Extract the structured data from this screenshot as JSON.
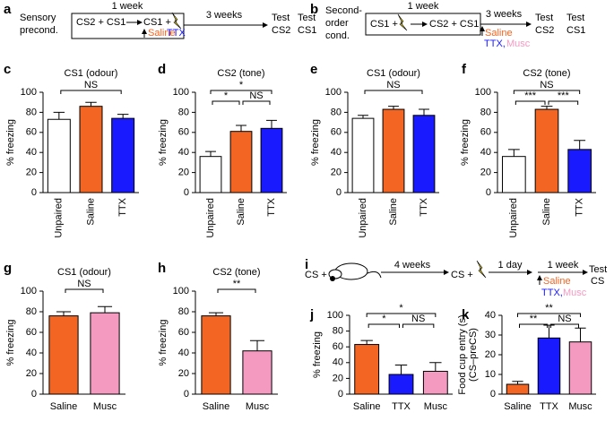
{
  "diagram_a": {
    "label": "a",
    "group": [
      "Sensory",
      "precond."
    ],
    "week": "1 week",
    "step1": "CS2 + CS1",
    "step2": "CS1 +",
    "drugs": [
      "Saline",
      "TTX"
    ],
    "gap": "3 weeks",
    "tests": [
      [
        "Test",
        "CS2"
      ],
      [
        "Test",
        "CS1"
      ]
    ]
  },
  "diagram_b": {
    "label": "b",
    "group": [
      "Second-",
      "order",
      "cond."
    ],
    "week": "1 week",
    "step1": "CS1 +",
    "step2": "CS2 + CS1",
    "gap": "3 weeks",
    "drugs": [
      "Saline",
      "TTX,",
      "Musc"
    ],
    "tests": [
      [
        "Test",
        "CS2"
      ],
      [
        "Test",
        "CS1"
      ]
    ]
  },
  "diagram_i": {
    "label": "i",
    "step1": "CS +",
    "gap1": "4 weeks",
    "step2": "CS +",
    "gap2": "1 day",
    "week": "1 week",
    "drugs": [
      "Saline",
      "TTX,",
      "Musc"
    ],
    "test": [
      "Test",
      "CS"
    ]
  },
  "chart_data": [
    {
      "type": "bar",
      "label": "c",
      "title": "CS1 (odour)",
      "ylabel": "% freezing",
      "categories": [
        "Unpaired",
        "Saline",
        "TTX"
      ],
      "values": [
        73,
        86,
        74
      ],
      "errors": [
        7,
        4,
        4
      ],
      "colors": [
        "#ffffff",
        "#f26522",
        "#1a1aff"
      ],
      "ylim": [
        0,
        100
      ],
      "yticks": [
        0,
        20,
        40,
        60,
        80,
        100
      ],
      "annotations": [
        {
          "text": "NS",
          "between": [
            "Unpaired",
            "TTX"
          ]
        }
      ]
    },
    {
      "type": "bar",
      "label": "d",
      "title": "CS2 (tone)",
      "ylabel": "% freezing",
      "categories": [
        "Unpaired",
        "Saline",
        "TTX"
      ],
      "values": [
        36,
        61,
        64
      ],
      "errors": [
        5,
        6,
        8
      ],
      "colors": [
        "#ffffff",
        "#f26522",
        "#1a1aff"
      ],
      "ylim": [
        0,
        100
      ],
      "yticks": [
        0,
        20,
        40,
        60,
        80,
        100
      ],
      "annotations": [
        {
          "text": "*",
          "between": [
            "Unpaired",
            "Saline"
          ]
        },
        {
          "text": "*",
          "between": [
            "Unpaired",
            "TTX"
          ]
        },
        {
          "text": "NS",
          "between": [
            "Saline",
            "TTX"
          ]
        }
      ]
    },
    {
      "type": "bar",
      "label": "e",
      "title": "CS1 (odour)",
      "ylabel": "% freezing",
      "categories": [
        "Unpaired",
        "Saline",
        "TTX"
      ],
      "values": [
        74,
        83,
        77
      ],
      "errors": [
        3,
        3,
        6
      ],
      "colors": [
        "#ffffff",
        "#f26522",
        "#1a1aff"
      ],
      "ylim": [
        0,
        100
      ],
      "yticks": [
        0,
        20,
        40,
        60,
        80,
        100
      ],
      "annotations": [
        {
          "text": "NS",
          "between": [
            "Unpaired",
            "TTX"
          ]
        }
      ]
    },
    {
      "type": "bar",
      "label": "f",
      "title": "CS2 (tone)",
      "ylabel": "% freezing",
      "categories": [
        "Unpaired",
        "Saline",
        "TTX"
      ],
      "values": [
        36,
        83,
        43
      ],
      "errors": [
        7,
        3,
        9
      ],
      "colors": [
        "#ffffff",
        "#f26522",
        "#1a1aff"
      ],
      "ylim": [
        0,
        100
      ],
      "yticks": [
        0,
        20,
        40,
        60,
        80,
        100
      ],
      "annotations": [
        {
          "text": "***",
          "between": [
            "Unpaired",
            "Saline"
          ]
        },
        {
          "text": "***",
          "between": [
            "Saline",
            "TTX"
          ]
        },
        {
          "text": "NS",
          "between": [
            "Unpaired",
            "TTX"
          ]
        }
      ]
    },
    {
      "type": "bar",
      "label": "g",
      "title": "CS1 (odour)",
      "ylabel": "% freezing",
      "categories": [
        "Saline",
        "Musc"
      ],
      "values": [
        76,
        79
      ],
      "errors": [
        4,
        6
      ],
      "colors": [
        "#f26522",
        "#f49ac1"
      ],
      "ylim": [
        0,
        100
      ],
      "yticks": [
        0,
        20,
        40,
        60,
        80,
        100
      ],
      "annotations": [
        {
          "text": "NS",
          "between": [
            "Saline",
            "Musc"
          ]
        }
      ]
    },
    {
      "type": "bar",
      "label": "h",
      "title": "CS2 (tone)",
      "ylabel": "% freezing",
      "categories": [
        "Saline",
        "Musc"
      ],
      "values": [
        76,
        42
      ],
      "errors": [
        3,
        10
      ],
      "colors": [
        "#f26522",
        "#f49ac1"
      ],
      "ylim": [
        0,
        100
      ],
      "yticks": [
        0,
        20,
        40,
        60,
        80,
        100
      ],
      "annotations": [
        {
          "text": "**",
          "between": [
            "Saline",
            "Musc"
          ]
        }
      ]
    },
    {
      "type": "bar",
      "label": "j",
      "ylabel": "% freezing",
      "categories": [
        "Saline",
        "TTX",
        "Musc"
      ],
      "values": [
        63,
        25,
        29
      ],
      "errors": [
        5,
        12,
        11
      ],
      "colors": [
        "#f26522",
        "#1a1aff",
        "#f49ac1"
      ],
      "ylim": [
        0,
        100
      ],
      "yticks": [
        0,
        20,
        40,
        60,
        80,
        100
      ],
      "annotations": [
        {
          "text": "*",
          "between": [
            "Saline",
            "TTX"
          ]
        },
        {
          "text": "NS",
          "between": [
            "TTX",
            "Musc"
          ]
        },
        {
          "text": "*",
          "between": [
            "Saline",
            "Musc"
          ]
        }
      ]
    },
    {
      "type": "bar",
      "label": "k",
      "ylabel": [
        "Food cup entry (s)",
        "(CS–preCS)"
      ],
      "categories": [
        "Saline",
        "TTX",
        "Musc"
      ],
      "values": [
        5,
        28.5,
        26.5
      ],
      "errors": [
        1.5,
        6.5,
        7
      ],
      "colors": [
        "#f26522",
        "#1a1aff",
        "#f49ac1"
      ],
      "ylim": [
        0,
        40
      ],
      "yticks": [
        0,
        10,
        20,
        30,
        40
      ],
      "annotations": [
        {
          "text": "**",
          "between": [
            "Saline",
            "TTX"
          ]
        },
        {
          "text": "**",
          "between": [
            "Saline",
            "Musc"
          ]
        },
        {
          "text": "NS",
          "between": [
            "TTX",
            "Musc"
          ]
        }
      ]
    }
  ]
}
